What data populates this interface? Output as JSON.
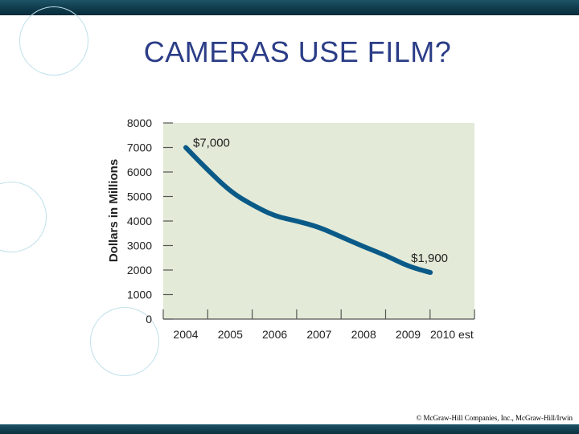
{
  "slide": {
    "title": "CAMERAS USE FILM?",
    "copyright": "© McGraw-Hill Companies, Inc., McGraw-Hill/Irwin"
  },
  "theme": {
    "title_color": "#2b3d87",
    "bar_color": "#0f3a4b",
    "plot_bg": "#e3ead7",
    "line_color": "#0a5a88",
    "axis_text_color": "#222222"
  },
  "chart_data": {
    "type": "line",
    "ylabel": "Dollars in Millions",
    "xlabel": "",
    "ylim": [
      0,
      8000
    ],
    "yticks": [
      0,
      1000,
      2000,
      3000,
      4000,
      5000,
      6000,
      7000,
      8000
    ],
    "categories": [
      "2004",
      "2005",
      "2006",
      "2007",
      "2008",
      "2009",
      "2010 est"
    ],
    "series": [
      {
        "x": [
          2004,
          2004.4,
          2005,
          2005.5,
          2006,
          2006.5,
          2007,
          2007.5,
          2008,
          2008.5,
          2009,
          2009.5
        ],
        "values": [
          7000,
          6250,
          5200,
          4650,
          4200,
          4000,
          3750,
          3350,
          2950,
          2600,
          2150,
          1900
        ]
      }
    ],
    "annotations": [
      {
        "text": "$7,000",
        "x": 2004,
        "y": 7000
      },
      {
        "text": "$1,900",
        "x": 2009.5,
        "y": 1900
      }
    ],
    "grid": false,
    "legend": "none"
  }
}
